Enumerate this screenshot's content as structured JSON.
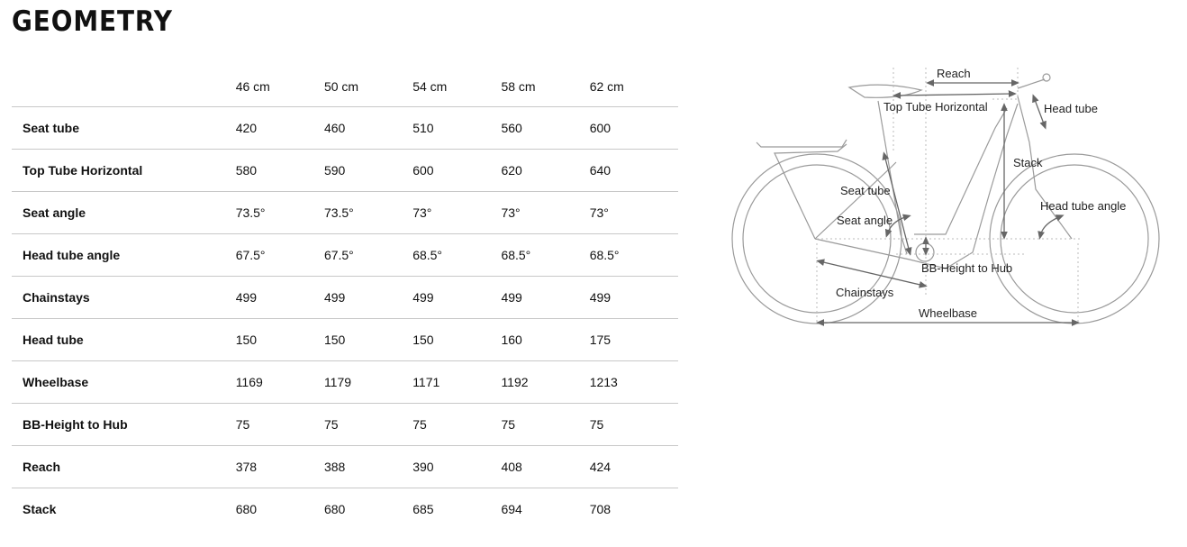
{
  "title": "GEOMETRY",
  "table": {
    "sizes": [
      "46 cm",
      "50 cm",
      "54 cm",
      "58 cm",
      "62 cm"
    ],
    "rows": [
      {
        "label": "Seat tube",
        "values": [
          "420",
          "460",
          "510",
          "560",
          "600"
        ]
      },
      {
        "label": "Top Tube Horizontal",
        "values": [
          "580",
          "590",
          "600",
          "620",
          "640"
        ]
      },
      {
        "label": "Seat angle",
        "values": [
          "73.5°",
          "73.5°",
          "73°",
          "73°",
          "73°"
        ]
      },
      {
        "label": "Head tube angle",
        "values": [
          "67.5°",
          "67.5°",
          "68.5°",
          "68.5°",
          "68.5°"
        ]
      },
      {
        "label": "Chainstays",
        "values": [
          "499",
          "499",
          "499",
          "499",
          "499"
        ]
      },
      {
        "label": "Head tube",
        "values": [
          "150",
          "150",
          "150",
          "160",
          "175"
        ]
      },
      {
        "label": "Wheelbase",
        "values": [
          "1169",
          "1179",
          "1171",
          "1192",
          "1213"
        ]
      },
      {
        "label": "BB-Height to Hub",
        "values": [
          "75",
          "75",
          "75",
          "75",
          "75"
        ]
      },
      {
        "label": "Reach",
        "values": [
          "378",
          "388",
          "390",
          "408",
          "424"
        ]
      },
      {
        "label": "Stack",
        "values": [
          "680",
          "680",
          "685",
          "694",
          "708"
        ]
      }
    ]
  },
  "diagram": {
    "labels": {
      "reach": "Reach",
      "top_tube": "Top Tube Horizontal",
      "head_tube": "Head tube",
      "stack": "Stack",
      "seat_tube": "Seat tube",
      "seat_angle": "Seat angle",
      "head_tube_angle": "Head tube angle",
      "bb_height": "BB-Height to Hub",
      "chainstays": "Chainstays",
      "wheelbase": "Wheelbase"
    }
  }
}
